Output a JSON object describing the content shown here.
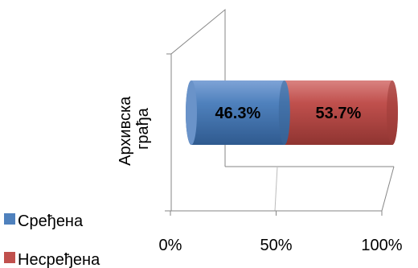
{
  "chart_data": {
    "type": "bar",
    "orientation": "horizontal",
    "stacked": "percent",
    "style": "3d-cylinder",
    "categories": [
      "Архивска грађа"
    ],
    "category_lines": [
      "Архивска",
      "грађа"
    ],
    "series": [
      {
        "name": "Сређена",
        "values": [
          46.3
        ],
        "color": "#4f81bd"
      },
      {
        "name": "Несређена",
        "values": [
          53.7
        ],
        "color": "#c0504d"
      }
    ],
    "data_labels": [
      "46.3%",
      "53.7%"
    ],
    "x_ticks": [
      {
        "value": 0,
        "label": "0%"
      },
      {
        "value": 50,
        "label": "50%"
      },
      {
        "value": 100,
        "label": "100%"
      }
    ],
    "xlim": [
      0,
      100
    ],
    "legend_position": "bottom-left",
    "grid": false,
    "title": "",
    "xlabel": "",
    "ylabel": ""
  }
}
